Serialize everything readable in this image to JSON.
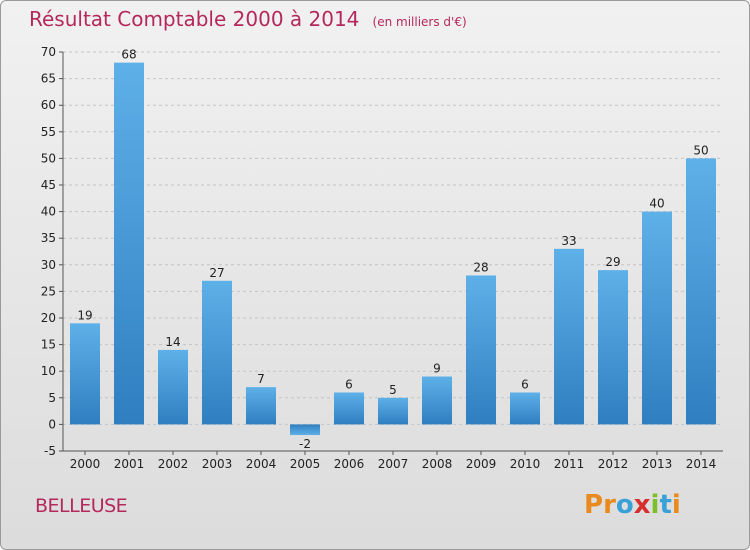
{
  "title": "Résultat Comptable 2000 à 2014",
  "subtitle": "(en milliers d'€)",
  "commune": "BELLEUSE",
  "logo": {
    "text": "Proxiti",
    "letters": [
      "P",
      "r",
      "o",
      "x",
      "i",
      "t",
      "i"
    ],
    "colors": [
      "#e98a1f",
      "#e98a1f",
      "#3aa0d8",
      "#d62f2f",
      "#7cbf2a",
      "#3aa0d8",
      "#e98a1f"
    ]
  },
  "colors": {
    "title": "#b5285c",
    "bar_light": "#5eb0e8",
    "bar_dark": "#2f86c6"
  },
  "chart_data": {
    "type": "bar",
    "categories": [
      "2000",
      "2001",
      "2002",
      "2003",
      "2004",
      "2005",
      "2006",
      "2007",
      "2008",
      "2009",
      "2010",
      "2011",
      "2012",
      "2013",
      "2014"
    ],
    "values": [
      19,
      68,
      14,
      27,
      7,
      -2,
      6,
      5,
      9,
      28,
      6,
      33,
      29,
      40,
      50
    ],
    "ylim": [
      -5,
      70
    ],
    "yticks": [
      -5,
      0,
      5,
      10,
      15,
      20,
      25,
      30,
      35,
      40,
      45,
      50,
      55,
      60,
      65,
      70
    ],
    "grid": true,
    "xlabel": "",
    "ylabel": "",
    "title": "Résultat Comptable 2000 à 2014",
    "subtitle": "(en milliers d'€)"
  }
}
